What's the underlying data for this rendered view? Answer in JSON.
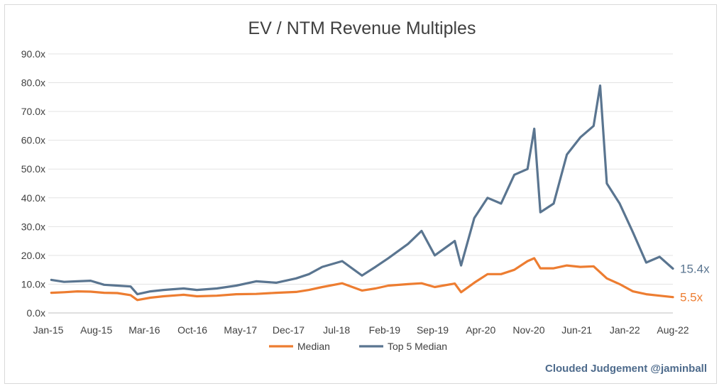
{
  "chart_data": {
    "type": "line",
    "title": "EV / NTM Revenue Multiples",
    "xlabel": "",
    "ylabel": "",
    "ylim": [
      0,
      90
    ],
    "y_ticks": [
      "0.0x",
      "10.0x",
      "20.0x",
      "30.0x",
      "40.0x",
      "50.0x",
      "60.0x",
      "70.0x",
      "80.0x",
      "90.0x"
    ],
    "x_ticks": [
      "Jan-15",
      "Aug-15",
      "Mar-16",
      "Oct-16",
      "May-17",
      "Dec-17",
      "Jul-18",
      "Feb-19",
      "Sep-19",
      "Apr-20",
      "Nov-20",
      "Jun-21",
      "Jan-22",
      "Aug-22"
    ],
    "grid": "horizontal",
    "legend_position": "bottom",
    "colors": {
      "median": "#ed7d31",
      "top5": "#5a7590"
    },
    "series": [
      {
        "name": "Median",
        "color": "#ed7d31",
        "end_label": "5.5x",
        "points": [
          [
            "2015-01",
            7.0
          ],
          [
            "2015-03",
            7.2
          ],
          [
            "2015-05",
            7.5
          ],
          [
            "2015-07",
            7.4
          ],
          [
            "2015-09",
            7.0
          ],
          [
            "2015-11",
            6.9
          ],
          [
            "2016-01",
            6.2
          ],
          [
            "2016-02",
            4.5
          ],
          [
            "2016-04",
            5.3
          ],
          [
            "2016-06",
            5.8
          ],
          [
            "2016-09",
            6.3
          ],
          [
            "2016-11",
            5.8
          ],
          [
            "2017-02",
            6.0
          ],
          [
            "2017-05",
            6.5
          ],
          [
            "2017-08",
            6.6
          ],
          [
            "2017-11",
            7.0
          ],
          [
            "2018-02",
            7.3
          ],
          [
            "2018-04",
            8.0
          ],
          [
            "2018-06",
            9.0
          ],
          [
            "2018-09",
            10.3
          ],
          [
            "2018-12",
            7.8
          ],
          [
            "2019-02",
            8.5
          ],
          [
            "2019-04",
            9.5
          ],
          [
            "2019-07",
            10.0
          ],
          [
            "2019-09",
            10.3
          ],
          [
            "2019-11",
            9.0
          ],
          [
            "2020-02",
            10.2
          ],
          [
            "2020-03",
            7.2
          ],
          [
            "2020-05",
            10.5
          ],
          [
            "2020-07",
            13.5
          ],
          [
            "2020-09",
            13.5
          ],
          [
            "2020-11",
            15.0
          ],
          [
            "2021-01",
            18.0
          ],
          [
            "2021-02",
            19.0
          ],
          [
            "2021-03",
            15.5
          ],
          [
            "2021-05",
            15.5
          ],
          [
            "2021-07",
            16.5
          ],
          [
            "2021-09",
            16.0
          ],
          [
            "2021-11",
            16.2
          ],
          [
            "2022-01",
            12.0
          ],
          [
            "2022-03",
            10.0
          ],
          [
            "2022-05",
            7.5
          ],
          [
            "2022-07",
            6.5
          ],
          [
            "2022-09",
            6.0
          ],
          [
            "2022-11",
            5.5
          ]
        ]
      },
      {
        "name": "Top 5 Median",
        "color": "#5a7590",
        "end_label": "15.4x",
        "points": [
          [
            "2015-01",
            11.5
          ],
          [
            "2015-03",
            10.8
          ],
          [
            "2015-05",
            11.0
          ],
          [
            "2015-07",
            11.2
          ],
          [
            "2015-09",
            9.8
          ],
          [
            "2015-11",
            9.5
          ],
          [
            "2016-01",
            9.2
          ],
          [
            "2016-02",
            6.5
          ],
          [
            "2016-04",
            7.5
          ],
          [
            "2016-06",
            8.0
          ],
          [
            "2016-09",
            8.5
          ],
          [
            "2016-11",
            8.0
          ],
          [
            "2017-02",
            8.5
          ],
          [
            "2017-05",
            9.5
          ],
          [
            "2017-08",
            11.0
          ],
          [
            "2017-11",
            10.5
          ],
          [
            "2018-02",
            12.0
          ],
          [
            "2018-04",
            13.5
          ],
          [
            "2018-06",
            16.0
          ],
          [
            "2018-09",
            18.0
          ],
          [
            "2018-12",
            13.0
          ],
          [
            "2019-02",
            16.0
          ],
          [
            "2019-04",
            19.0
          ],
          [
            "2019-07",
            24.0
          ],
          [
            "2019-09",
            28.5
          ],
          [
            "2019-11",
            20.0
          ],
          [
            "2020-02",
            25.0
          ],
          [
            "2020-03",
            16.5
          ],
          [
            "2020-05",
            33.0
          ],
          [
            "2020-07",
            40.0
          ],
          [
            "2020-09",
            38.0
          ],
          [
            "2020-11",
            48.0
          ],
          [
            "2021-01",
            50.0
          ],
          [
            "2021-02",
            64.0
          ],
          [
            "2021-03",
            35.0
          ],
          [
            "2021-05",
            38.0
          ],
          [
            "2021-07",
            55.0
          ],
          [
            "2021-09",
            61.0
          ],
          [
            "2021-11",
            65.0
          ],
          [
            "2021-12",
            79.0
          ],
          [
            "2022-01",
            45.0
          ],
          [
            "2022-03",
            38.0
          ],
          [
            "2022-05",
            28.0
          ],
          [
            "2022-07",
            17.5
          ],
          [
            "2022-09",
            19.5
          ],
          [
            "2022-11",
            15.4
          ]
        ]
      }
    ]
  },
  "credit": "Clouded Judgement @jaminball"
}
